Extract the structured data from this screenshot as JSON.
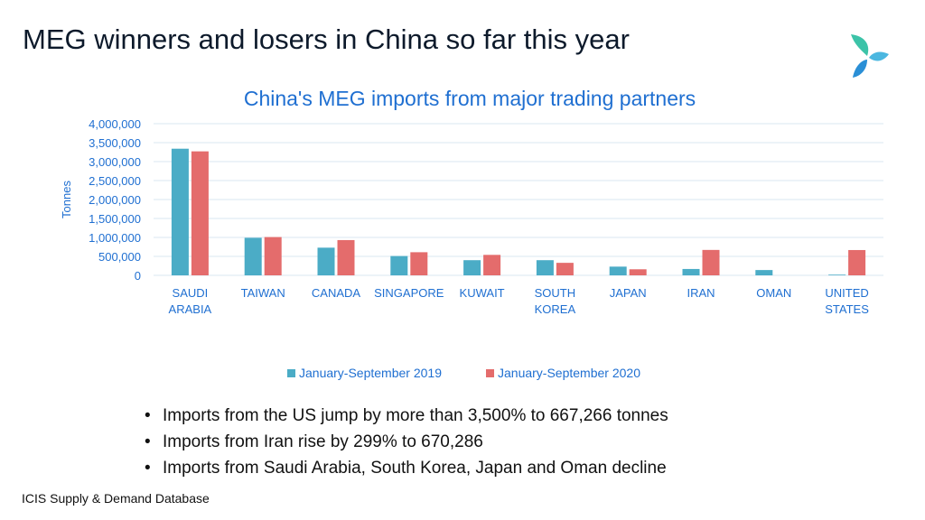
{
  "slide": {
    "title": "MEG winners and losers in China so far this year",
    "source": "ICIS Supply  &  Demand Database",
    "logo_icon": "icis-logo-icon",
    "bullets": [
      "Imports from the US jump by more than 3,500% to 667,266 tonnes",
      "Imports from Iran rise by 299% to 670,286",
      "Imports from Saudi Arabia, South Korea, Japan and Oman decline"
    ]
  },
  "chart_data": {
    "type": "bar",
    "title": "China's MEG imports from major trading partners",
    "xlabel": "",
    "ylabel": "Tonnes",
    "ylim": [
      0,
      4000000
    ],
    "yticks": [
      "0",
      "500,000",
      "1,000,000",
      "1,500,000",
      "2,000,000",
      "2,500,000",
      "3,000,000",
      "3,500,000",
      "4,000,000"
    ],
    "categories": [
      [
        "SAUDI",
        "ARABIA"
      ],
      [
        "TAIWAN"
      ],
      [
        "CANADA"
      ],
      [
        "SINGAPORE"
      ],
      [
        "KUWAIT"
      ],
      [
        "SOUTH",
        "KOREA"
      ],
      [
        "JAPAN"
      ],
      [
        "IRAN"
      ],
      [
        "OMAN"
      ],
      [
        "UNITED",
        "STATES"
      ]
    ],
    "series": [
      {
        "name": "January-September 2019",
        "color": "#4bacc6",
        "values": [
          3340000,
          990000,
          730000,
          510000,
          400000,
          400000,
          230000,
          168000,
          140000,
          18000
        ]
      },
      {
        "name": "January-September 2020",
        "color": "#e46c6c",
        "values": [
          3270000,
          1010000,
          930000,
          610000,
          540000,
          330000,
          160000,
          670286,
          0,
          667266
        ]
      }
    ],
    "grid": true,
    "legend": "bottom",
    "colors": {
      "title": "#1f6fd1",
      "axis_text": "#1f6fd1",
      "grid": "#d9e7f2"
    }
  }
}
